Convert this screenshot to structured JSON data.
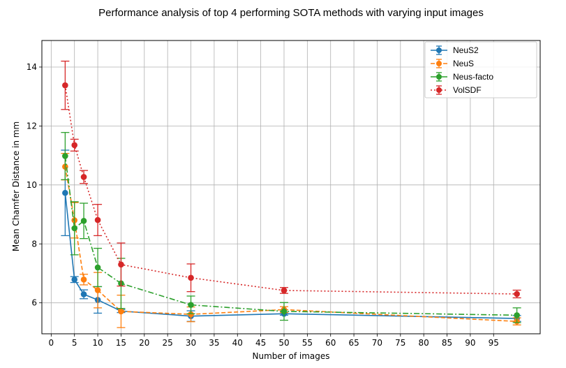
{
  "chart_data": {
    "type": "line",
    "title": "Performance analysis of top 4 performing SOTA methods with varying input images",
    "xlabel": "Number of images",
    "ylabel": "Mean Chamfer Distance in mm",
    "xlim": [
      -2,
      105
    ],
    "ylim": [
      4.95,
      14.9
    ],
    "xticks": [
      0,
      5,
      10,
      15,
      20,
      25,
      30,
      35,
      40,
      45,
      50,
      55,
      60,
      65,
      70,
      75,
      80,
      85,
      90,
      95
    ],
    "yticks": [
      6,
      8,
      10,
      12,
      14
    ],
    "grid": true,
    "legend_position": "upper right",
    "series": [
      {
        "name": "NeuS2",
        "color": "#1f77b4",
        "linestyle": "solid",
        "x": [
          3,
          5,
          7,
          10,
          15,
          30,
          50,
          100
        ],
        "y": [
          9.73,
          6.79,
          6.29,
          6.1,
          5.72,
          5.55,
          5.63,
          5.47
        ],
        "err": [
          1.45,
          0.1,
          0.15,
          0.45,
          0.05,
          0.18,
          0.05,
          0.1
        ]
      },
      {
        "name": "NeuS",
        "color": "#ff7f0e",
        "linestyle": "dashed",
        "x": [
          3,
          5,
          7,
          10,
          15,
          30,
          50,
          100
        ],
        "y": [
          10.62,
          8.8,
          6.79,
          6.43,
          5.71,
          5.61,
          5.77,
          5.37
        ],
        "err": [
          0.45,
          0.6,
          0.18,
          0.6,
          0.55,
          0.25,
          0.1,
          0.12
        ]
      },
      {
        "name": "Neus-facto",
        "color": "#2ca02c",
        "linestyle": "dashdot",
        "x": [
          3,
          5,
          7,
          10,
          15,
          30,
          50,
          100
        ],
        "y": [
          10.98,
          8.53,
          8.78,
          7.2,
          6.66,
          5.93,
          5.71,
          5.58
        ],
        "err": [
          0.8,
          0.9,
          0.6,
          0.65,
          0.85,
          0.3,
          0.3,
          0.25
        ]
      },
      {
        "name": "VolSDF",
        "color": "#d62728",
        "linestyle": "dotted",
        "x": [
          3,
          5,
          7,
          10,
          15,
          30,
          50,
          100
        ],
        "y": [
          13.38,
          11.35,
          10.27,
          8.81,
          7.3,
          6.85,
          6.42,
          6.3
        ],
        "err": [
          0.82,
          0.2,
          0.22,
          0.53,
          0.73,
          0.47,
          0.1,
          0.13
        ]
      }
    ]
  }
}
